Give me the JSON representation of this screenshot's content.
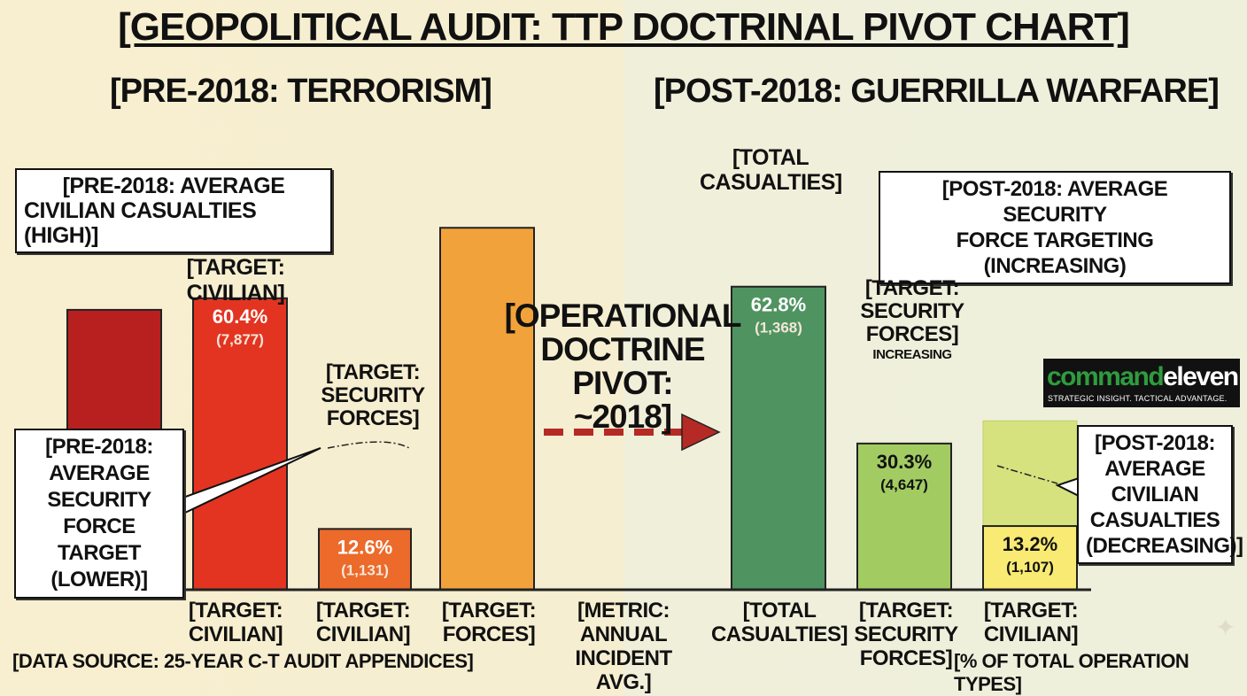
{
  "title": "[GEOPOLITICAL AUDIT: TTP DOCTRINAL PIVOT CHART]",
  "phases": {
    "pre": "[PRE-2018: TERRORISM]",
    "post": "[POST-2018: GUERRILLA WARFARE]"
  },
  "callouts": {
    "pre_civilian": [
      "[PRE-2018: AVERAGE",
      "CIVILIAN CASUALTIES (HIGH)]"
    ],
    "pre_security": [
      "[PRE-2018:",
      "AVERAGE",
      "SECURITY",
      "FORCE TARGET",
      "(LOWER)]"
    ],
    "post_security": [
      "[POST-2018: AVERAGE SECURITY",
      "FORCE TARGETING (INCREASING)"
    ],
    "post_civilian": [
      "[POST-2018:",
      "AVERAGE",
      "CIVILIAN",
      "CASUALTIES",
      "(DECREASING)]"
    ]
  },
  "bar_top_labels": {
    "civilian_pre": [
      "[TARGET:",
      "CIVILIAN]"
    ],
    "security_pre": [
      "[TARGET:",
      "SECURITY",
      "FORCES]"
    ],
    "total_post": [
      "[TOTAL",
      "CASUALTIES]"
    ],
    "security_post": [
      "[TARGET:",
      "SECURITY",
      "FORCES]"
    ],
    "security_post_note": "INCREASING"
  },
  "pivot": {
    "label": [
      "[OPERATIONAL",
      "DOCTRINE PIVOT:",
      "~2018]"
    ]
  },
  "axis_labels": [
    [
      "[TARGET:",
      "CIVILIAN]"
    ],
    [
      "[TARGET:",
      "CIVILIAN]"
    ],
    [
      "[TARGET:",
      "FORCES]"
    ],
    [
      "[METRIC:",
      "ANNUAL INCIDENT",
      "AVG.]"
    ],
    [
      "[TOTAL",
      "CASUALTIES]"
    ],
    [
      "[TARGET:",
      "SECURITY",
      "FORCES]"
    ],
    [
      "[TARGET:",
      "CIVILIAN]"
    ]
  ],
  "footer": {
    "source": "[DATA SOURCE: 25-YEAR C-T AUDIT APPENDICES]",
    "units": "[% OF TOTAL OPERATION TYPES]"
  },
  "logo": {
    "word_a": "command",
    "word_b": "eleven",
    "tagline": "STRATEGIC INSIGHT. TACTICAL ADVANTAGE."
  },
  "colors": {
    "dark_red": "#b8201f",
    "red": "#e33421",
    "orange_red": "#ec6a2a",
    "orange": "#f2a23a",
    "green": "#4f9460",
    "light_green": "#a2cc62",
    "yellow": "#f8ea73",
    "pale_green": "#d5e27e",
    "arrow": "#b52a24"
  },
  "chart_data": {
    "type": "bar",
    "ylim": [
      0,
      100
    ],
    "bars": [
      {
        "key": "pre_a",
        "color": "#b8201f",
        "value": 58
      },
      {
        "key": "civilian_pre",
        "color": "#e33421",
        "value": 60.4,
        "pct": "60.4%",
        "count": "(7,877)"
      },
      {
        "key": "security_pre",
        "color": "#ec6a2a",
        "value": 12.6,
        "pct": "12.6%",
        "count": "(1,131)"
      },
      {
        "key": "forces_pre",
        "color": "#f2a23a",
        "value": 75
      },
      {
        "key": "total_post",
        "color": "#4f9460",
        "value": 62.8,
        "pct": "62.8%",
        "count": "(1,368)"
      },
      {
        "key": "security_post",
        "color": "#a2cc62",
        "value": 30.3,
        "pct": "30.3%",
        "count": "(4,647)"
      },
      {
        "key": "civilian_post",
        "color": "#f8ea73",
        "value": 13.2,
        "pct": "13.2%",
        "count": "(1,107)"
      }
    ],
    "ghost": {
      "key": "civilian_post_prev",
      "color": "#d5e27e",
      "value": 35
    }
  }
}
